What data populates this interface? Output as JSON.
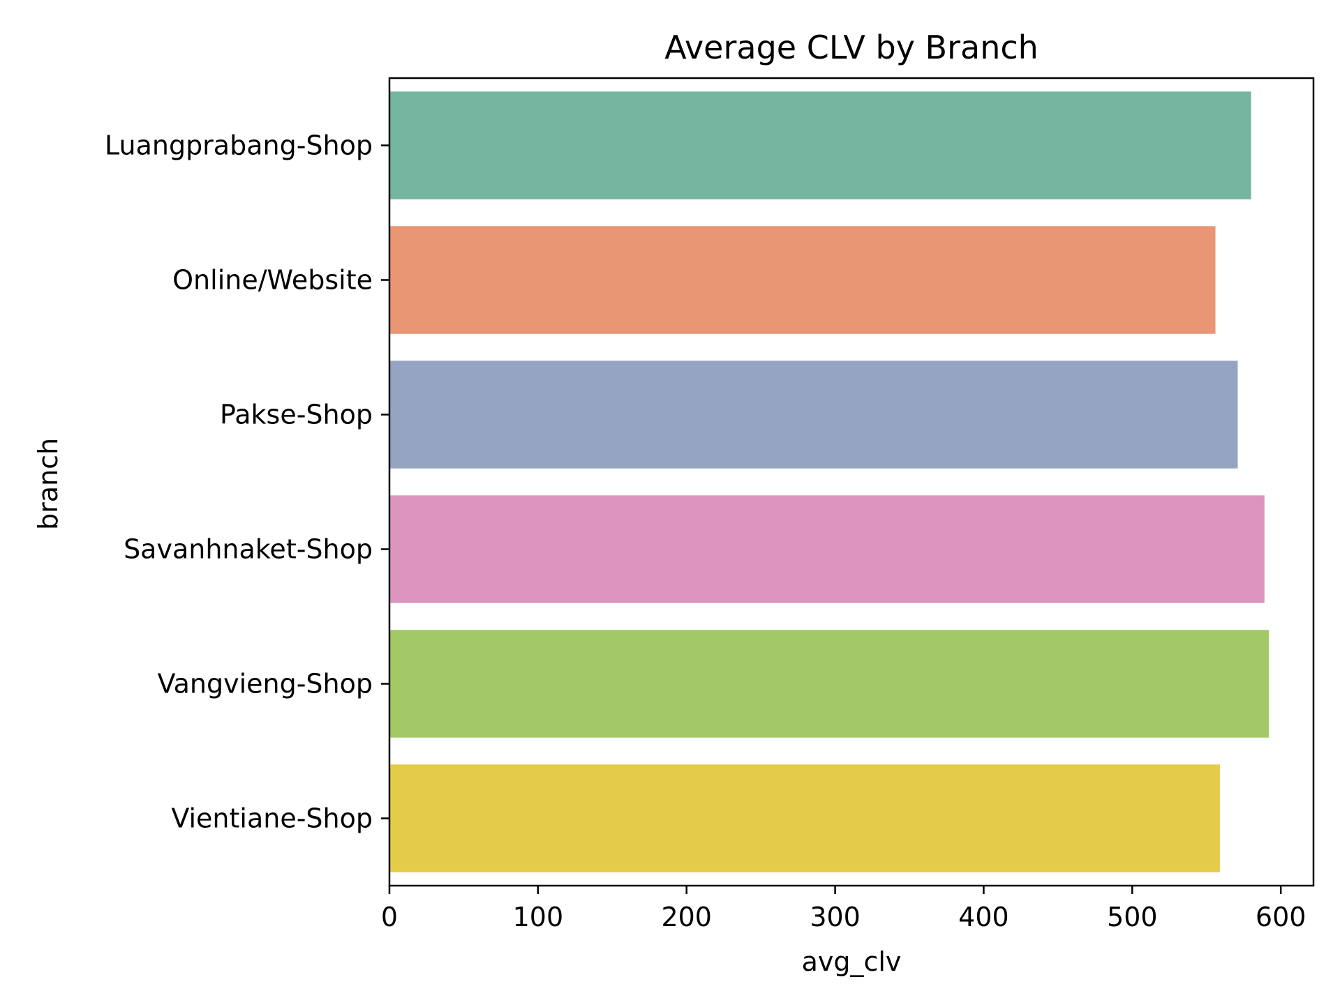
{
  "chart_data": {
    "type": "bar",
    "orientation": "horizontal",
    "title": "Average CLV by Branch",
    "xlabel": "avg_clv",
    "ylabel": "branch",
    "categories": [
      "Luangprabang-Shop",
      "Online/Website",
      "Pakse-Shop",
      "Savanhnaket-Shop",
      "Vangvieng-Shop",
      "Vientiane-Shop"
    ],
    "values": [
      580,
      556,
      571,
      589,
      592,
      559
    ],
    "colors": [
      "#76b5a0",
      "#e99675",
      "#95a4c3",
      "#dc95be",
      "#a3c967",
      "#e4cb4a"
    ],
    "xlim": [
      0,
      622
    ],
    "xticks": [
      0,
      100,
      200,
      300,
      400,
      500,
      600
    ],
    "grid": false,
    "legend": "none"
  }
}
